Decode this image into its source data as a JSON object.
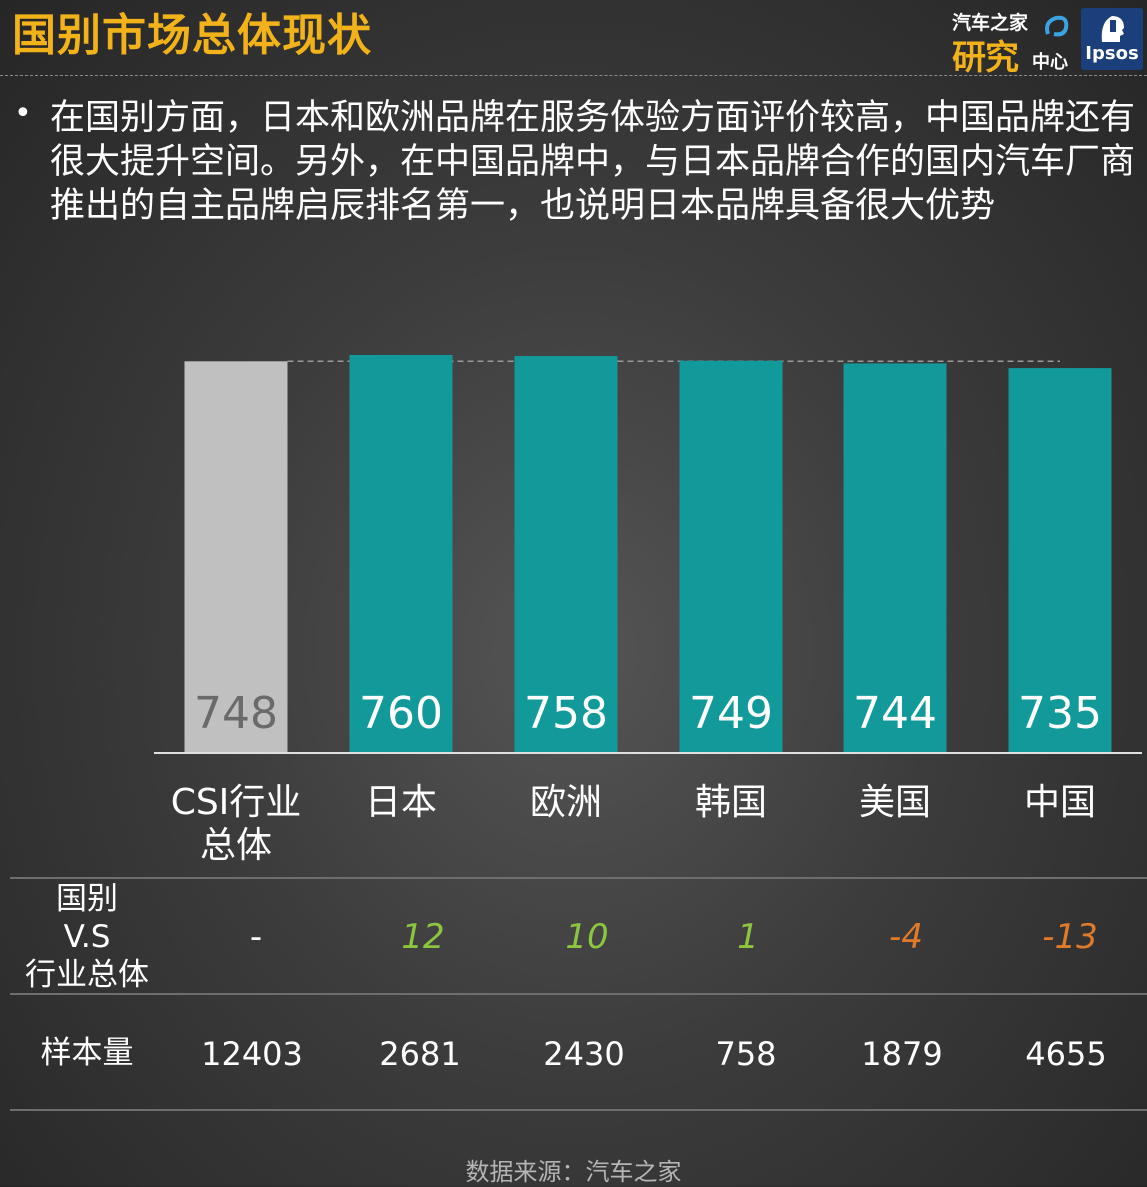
{
  "header": {
    "title": "国别市场总体现状",
    "logo_autohome": {
      "line1": "汽车之家",
      "line2": "研究",
      "line3": "中心"
    },
    "logo_ipsos": "Ipsos"
  },
  "bullet_symbol": "•",
  "body_text": "在国别方面，日本和欧洲品牌在服务体验方面评价较高，中国品牌还有很大提升空间。另外，在中国品牌中，与日本品牌合作的国内汽车厂商推出的自主品牌启辰排名第一，也说明日本品牌具备很大优势",
  "colors": {
    "title": "#f2b21a",
    "baseline_bar": "#c0c0c0",
    "brand_bar": "#129999",
    "positive": "#8cc63f",
    "negative": "#e07b2a"
  },
  "chart_data": {
    "type": "bar",
    "categories": [
      "CSI行业总体",
      "日本",
      "欧洲",
      "韩国",
      "美国",
      "中国"
    ],
    "category_display": [
      "CSI行业\n总体",
      "日本",
      "欧洲",
      "韩国",
      "美国",
      "中国"
    ],
    "values": [
      748,
      760,
      758,
      749,
      744,
      735
    ],
    "value_labels": [
      "748",
      "760",
      "758",
      "749",
      "744",
      "735"
    ],
    "reference_line": 748,
    "ylim": [
      0,
      760
    ],
    "grid": false,
    "legend": "none"
  },
  "table": {
    "diff_row_label": "国别\nV.S\n行业总体",
    "diff_values": [
      "-",
      "12",
      "10",
      "1",
      "-4",
      "-13"
    ],
    "sample_row_label": "样本量",
    "sample_values": [
      "12403",
      "2681",
      "2430",
      "758",
      "1879",
      "4655"
    ]
  },
  "source": "数据来源：汽车之家"
}
